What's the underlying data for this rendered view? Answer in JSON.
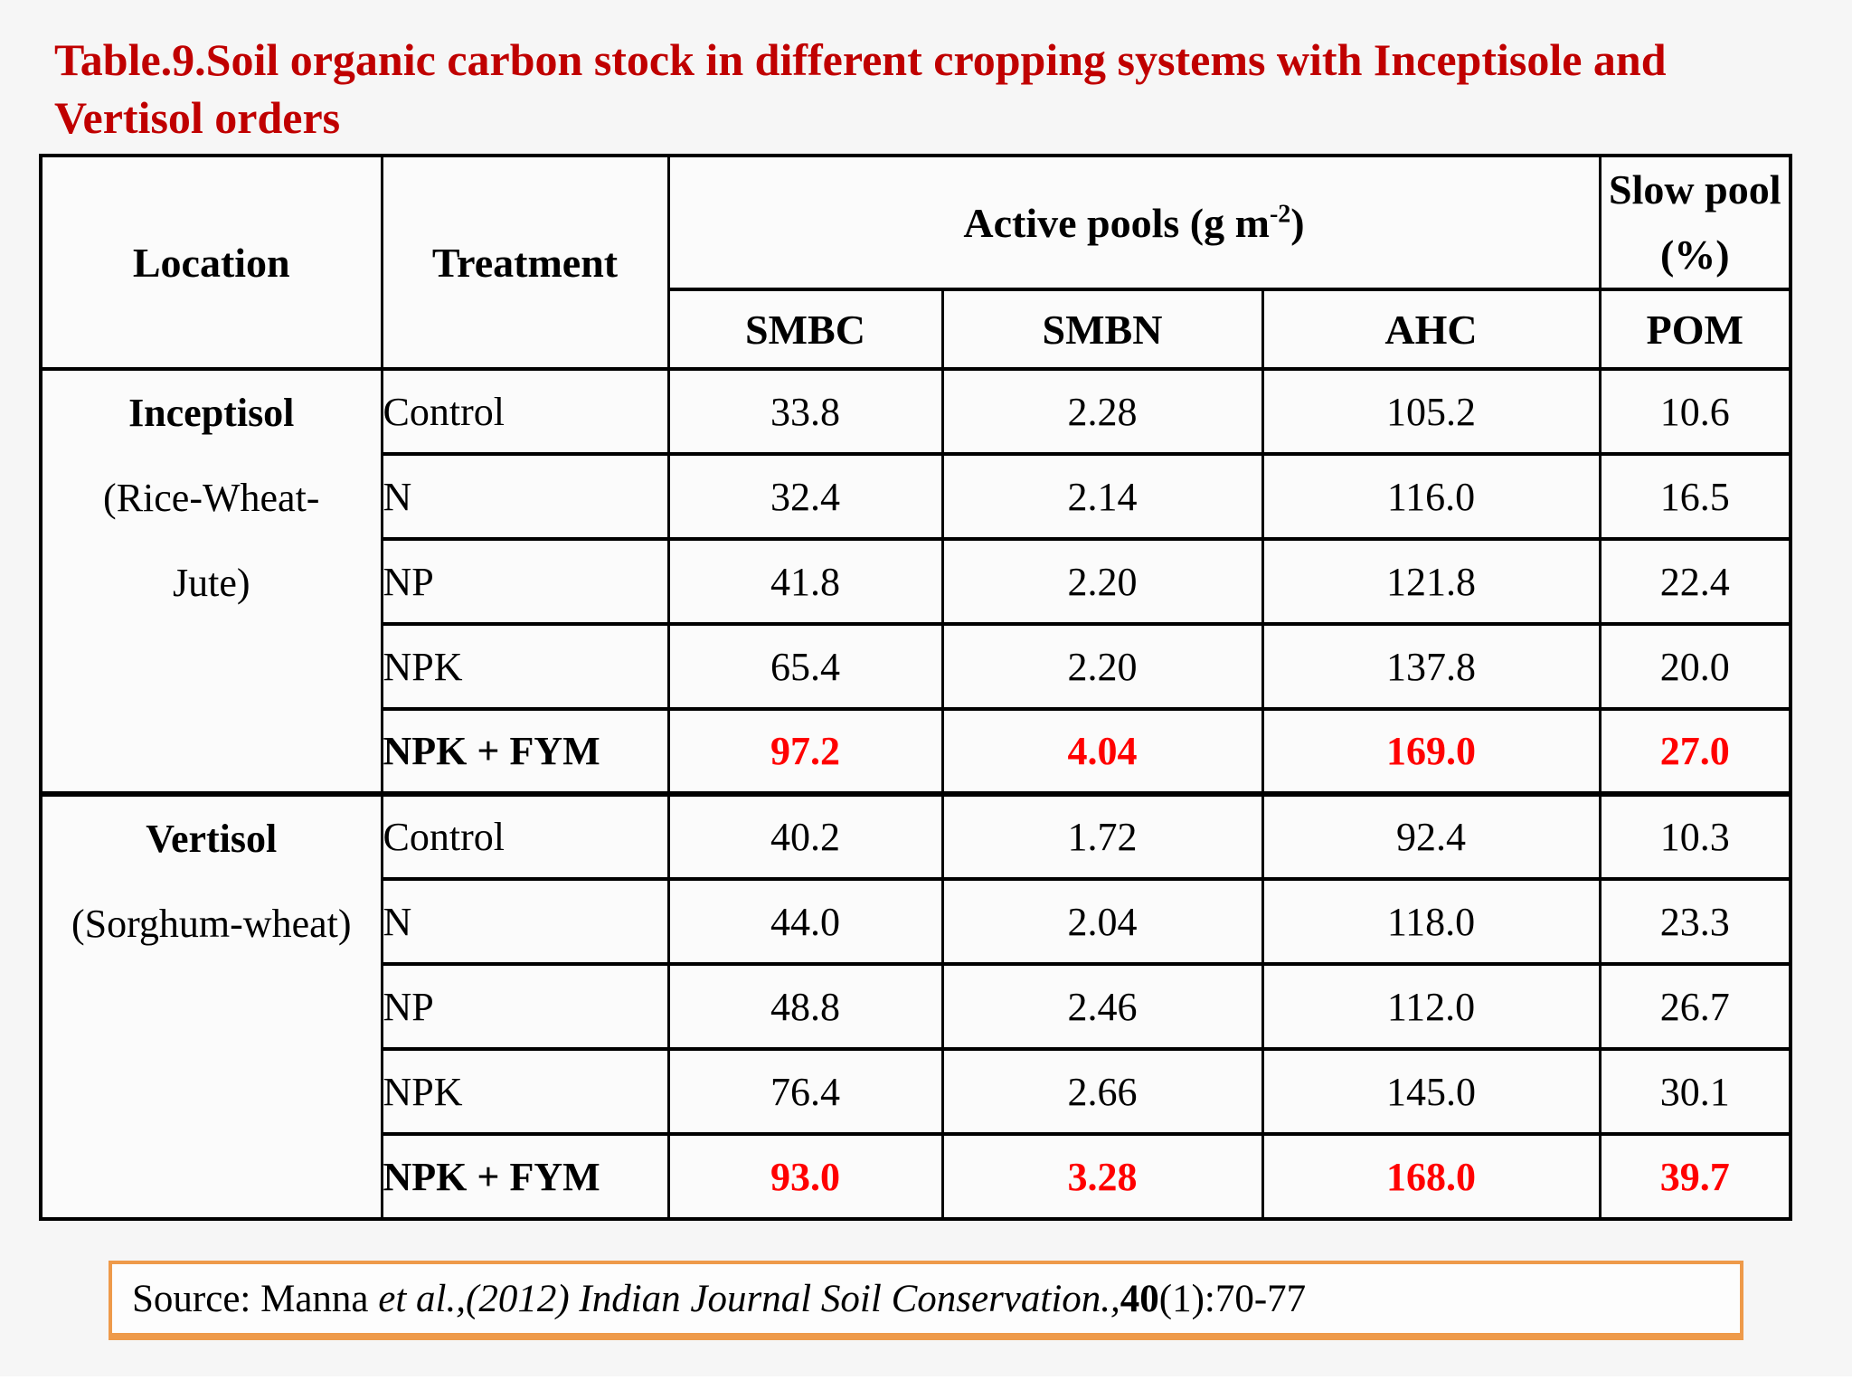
{
  "colors": {
    "title_red": "#c00000",
    "highlight_red": "#ff0000",
    "source_border_orange": "#ee9a4a",
    "table_border": "#000000",
    "page_bg": "#f6f6f6"
  },
  "title": {
    "lines": [
      "Table.9.Soil organic carbon stock in different cropping systems with Inceptisole and",
      "Vertisol orders"
    ]
  },
  "table": {
    "col_headers": {
      "location": "Location",
      "treatment": "Treatment",
      "active_pools_prefix": "Active pools (g m",
      "active_pools_sup": "-2",
      "active_pools_suffix": ")",
      "slow_pool": "Slow pool (%)",
      "smbc": "SMBC",
      "smbn": "SMBN",
      "ahc": "AHC",
      "pom": "POM"
    },
    "sections": [
      {
        "location_lines": [
          "Inceptisol",
          "(Rice-Wheat-",
          "Jute)"
        ],
        "rows": [
          {
            "treatment": "Control",
            "smbc": "33.8",
            "smbn": "2.28",
            "ahc": "105.2",
            "pom": "10.6"
          },
          {
            "treatment": "N",
            "smbc": "32.4",
            "smbn": "2.14",
            "ahc": "116.0",
            "pom": "16.5"
          },
          {
            "treatment": "NP",
            "smbc": "41.8",
            "smbn": "2.20",
            "ahc": "121.8",
            "pom": "22.4"
          },
          {
            "treatment": "NPK",
            "smbc": "65.4",
            "smbn": "2.20",
            "ahc": "137.8",
            "pom": "20.0"
          },
          {
            "treatment": "NPK + FYM",
            "smbc": "97.2",
            "smbn": "4.04",
            "ahc": "169.0",
            "pom": "27.0"
          }
        ]
      },
      {
        "location_lines": [
          "Vertisol",
          "(Sorghum-wheat)"
        ],
        "rows": [
          {
            "treatment": "Control",
            "smbc": "40.2",
            "smbn": "1.72",
            "ahc": "92.4",
            "pom": "10.3"
          },
          {
            "treatment": "N",
            "smbc": "44.0",
            "smbn": "2.04",
            "ahc": "118.0",
            "pom": "23.3"
          },
          {
            "treatment": "NP",
            "smbc": "48.8",
            "smbn": "2.46",
            "ahc": "112.0",
            "pom": "26.7"
          },
          {
            "treatment": "NPK",
            "smbc": "76.4",
            "smbn": "2.66",
            "ahc": "145.0",
            "pom": "30.1"
          },
          {
            "treatment": "NPK + FYM",
            "smbc": "93.0",
            "smbn": "3.28",
            "ahc": "168.0",
            "pom": "39.7"
          }
        ]
      }
    ]
  },
  "source": {
    "prefix": "Source: Manna ",
    "etal_year": "et al.,(2012) ",
    "journal": "Indian Journal Soil Conservation.,",
    "volume": "40",
    "issue_pages": "(1):70-77"
  }
}
